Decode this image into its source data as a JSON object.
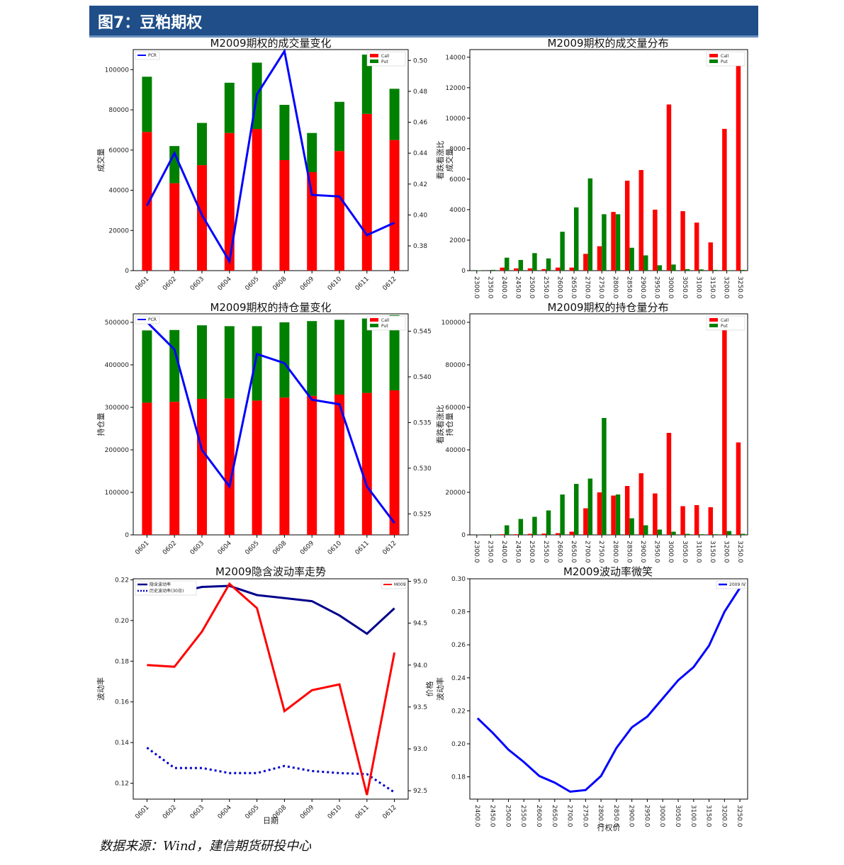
{
  "header": {
    "title": "图7：豆粕期权"
  },
  "source_note": "数据来源：Wind，建信期货研投中心",
  "colors": {
    "call": "#ff0000",
    "put": "#008000",
    "pcr": "#0000ff",
    "iv": "#00008b",
    "hv": "#0000cd",
    "underlying": "#ff0000",
    "header_bg": "#1f4e89"
  },
  "chart_data": [
    {
      "id": "volume-change",
      "type": "bar",
      "title": "M2009期权的成交量变化",
      "ylabel": "成交量",
      "y2label": "",
      "categories": [
        "0601",
        "0602",
        "0603",
        "0604",
        "0605",
        "0608",
        "0609",
        "0610",
        "0611",
        "0612"
      ],
      "series": [
        {
          "name": "Call",
          "values": [
            69000,
            43500,
            52500,
            68500,
            70500,
            55000,
            49000,
            59500,
            78000,
            65000
          ]
        },
        {
          "name": "Put",
          "values": [
            27500,
            18500,
            21000,
            25000,
            33000,
            27500,
            19500,
            24500,
            29500,
            25500
          ]
        }
      ],
      "line": {
        "name": "PCR",
        "values": [
          0.406,
          0.44,
          0.4,
          0.37,
          0.478,
          0.506,
          0.413,
          0.412,
          0.387,
          0.395
        ]
      },
      "ylim": [
        0,
        110000
      ],
      "yticks": [
        0,
        20000,
        40000,
        60000,
        80000,
        100000
      ],
      "y2lim": [
        0.364,
        0.507
      ],
      "y2ticks": [
        0.38,
        0.4,
        0.42,
        0.44,
        0.46,
        0.48,
        0.5
      ],
      "y2ticklabels": [
        "0.38",
        "0.40",
        "0.42",
        "0.44",
        "0.46",
        "0.48",
        "0.50"
      ],
      "stacked": true
    },
    {
      "id": "volume-dist",
      "type": "bar",
      "title": "M2009期权的成交量分布",
      "ylabel": "看跌看涨比\n成交量",
      "categories": [
        "2300.0",
        "2350.0",
        "2400.0",
        "2450.0",
        "2500.0",
        "2550.0",
        "2600.0",
        "2650.0",
        "2700.0",
        "2750.0",
        "2800.0",
        "2850.0",
        "2900.0",
        "2950.0",
        "3000.0",
        "3050.0",
        "3100.0",
        "3150.0",
        "3200.0",
        "3250.0"
      ],
      "series": [
        {
          "name": "Call",
          "values": [
            0,
            0,
            200,
            150,
            150,
            100,
            200,
            200,
            1100,
            1600,
            3850,
            5900,
            6600,
            4000,
            10900,
            3900,
            3150,
            1850,
            9300,
            13900
          ]
        },
        {
          "name": "Put",
          "values": [
            20,
            50,
            850,
            700,
            1150,
            800,
            2550,
            4150,
            6050,
            3700,
            3700,
            1500,
            1000,
            350,
            400,
            100,
            80,
            50,
            30,
            50
          ]
        }
      ],
      "ylim": [
        0,
        14500
      ],
      "yticks": [
        0,
        2000,
        4000,
        6000,
        8000,
        10000,
        12000,
        14000
      ],
      "stacked": false
    },
    {
      "id": "oi-change",
      "type": "bar",
      "title": "M2009期权的持仓量变化",
      "ylabel": "持仓量",
      "categories": [
        "0601",
        "0602",
        "0603",
        "0604",
        "0605",
        "0608",
        "0609",
        "0610",
        "0611",
        "0612"
      ],
      "series": [
        {
          "name": "Call",
          "values": [
            311000,
            313000,
            320000,
            321000,
            316000,
            323000,
            327000,
            330000,
            334000,
            340000
          ]
        },
        {
          "name": "Put",
          "values": [
            170000,
            169000,
            173000,
            170000,
            175000,
            177000,
            176000,
            176000,
            175000,
            177000
          ]
        }
      ],
      "line": {
        "name": "PCR",
        "values": [
          0.546,
          0.543,
          0.532,
          0.528,
          0.5425,
          0.5415,
          0.5375,
          0.537,
          0.528,
          0.524
        ]
      },
      "ylim": [
        0,
        520000
      ],
      "yticks": [
        0,
        100000,
        200000,
        300000,
        400000,
        500000
      ],
      "y2lim": [
        0.5227,
        0.5469
      ],
      "y2ticks": [
        0.525,
        0.53,
        0.535,
        0.54,
        0.545
      ],
      "y2ticklabels": [
        "0.525",
        "0.530",
        "0.535",
        "0.540",
        "0.545"
      ],
      "stacked": true
    },
    {
      "id": "oi-dist",
      "type": "bar",
      "title": "M2009期权的持仓量分布",
      "ylabel": "看跌看涨比\n持仓量",
      "categories": [
        "2300.0",
        "2350.0",
        "2400.0",
        "2450.0",
        "2500.0",
        "2550.0",
        "2600.0",
        "2650.0",
        "2700.0",
        "2750.0",
        "2800.0",
        "2850.0",
        "2900.0",
        "2950.0",
        "3000.0",
        "3050.0",
        "3100.0",
        "3150.0",
        "3200.0",
        "3250.0"
      ],
      "series": [
        {
          "name": "Call",
          "values": [
            0,
            0,
            300,
            300,
            500,
            600,
            800,
            1500,
            12500,
            20000,
            18500,
            23000,
            29000,
            19500,
            48000,
            13500,
            14000,
            13000,
            99000,
            43500
          ]
        },
        {
          "name": "Put",
          "values": [
            100,
            200,
            4500,
            7500,
            8500,
            11500,
            19000,
            24000,
            26500,
            55000,
            19000,
            7800,
            4500,
            2500,
            1500,
            500,
            300,
            300,
            1800,
            500
          ]
        }
      ],
      "ylim": [
        0,
        104000
      ],
      "yticks": [
        0,
        20000,
        40000,
        60000,
        80000,
        100000
      ],
      "stacked": false
    },
    {
      "id": "iv-trend",
      "type": "line",
      "title": "M2009隐含波动率走势",
      "xlabel": "日期",
      "ylabel": "波动率",
      "y2label": "价格",
      "categories": [
        "0601",
        "0602",
        "0603",
        "0604",
        "0605",
        "0608",
        "0609",
        "0610",
        "0611",
        "0612"
      ],
      "series": [
        {
          "name": "隐含波动率",
          "values": [
            0.214,
            0.2135,
            0.2165,
            0.217,
            0.2125,
            0.211,
            0.2095,
            0.2025,
            0.1935,
            0.206
          ],
          "style": "solid"
        },
        {
          "name": "历史波动率(30日)",
          "values": [
            0.1375,
            0.1275,
            0.1275,
            0.125,
            0.125,
            0.1285,
            0.126,
            0.125,
            0.1245,
            0.1155
          ],
          "style": "dotted"
        }
      ],
      "line2": {
        "name": "M009",
        "values": [
          94.0,
          93.98,
          94.4,
          94.97,
          94.68,
          93.45,
          93.7,
          93.77,
          92.45,
          94.15
        ]
      },
      "ylim": [
        0.1122,
        0.2205
      ],
      "yticks": [
        0.12,
        0.14,
        0.16,
        0.18,
        0.2,
        0.22
      ],
      "y2lim": [
        92.4,
        95.03
      ],
      "y2ticks": [
        92.5,
        93.0,
        93.5,
        94.0,
        94.5,
        95.0
      ],
      "y2ticklabels": [
        "92.5",
        "93.0",
        "93.5",
        "94.0",
        "94.5",
        "95.0"
      ]
    },
    {
      "id": "iv-smile",
      "type": "line",
      "title": "M2009波动率微笑",
      "xlabel": "行权价",
      "ylabel": "波动率",
      "categories": [
        "2400.0",
        "2450.0",
        "2500.0",
        "2550.0",
        "2600.0",
        "2650.0",
        "2700.0",
        "2750.0",
        "2800.0",
        "2850.0",
        "2900.0",
        "2950.0",
        "3000.0",
        "3050.0",
        "3100.0",
        "3150.0",
        "3200.0",
        "3250.0"
      ],
      "series": [
        {
          "name": "2009 IV",
          "values": [
            0.2155,
            0.2065,
            0.1965,
            0.189,
            0.1805,
            0.1765,
            0.171,
            0.172,
            0.1805,
            0.1975,
            0.21,
            0.2165,
            0.2275,
            0.2385,
            0.2465,
            0.2595,
            0.28,
            0.2945
          ]
        }
      ],
      "ylim": [
        0.1665,
        0.3
      ],
      "yticks": [
        0.18,
        0.2,
        0.22,
        0.24,
        0.26,
        0.28,
        0.3
      ]
    }
  ]
}
